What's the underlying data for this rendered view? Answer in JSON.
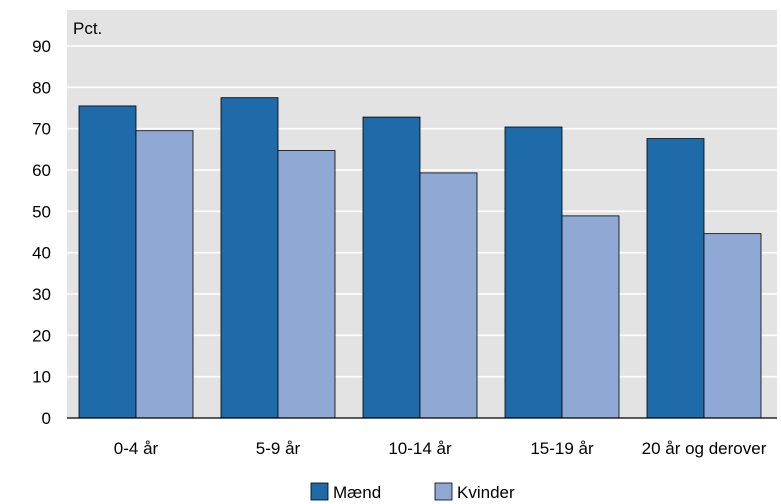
{
  "chart_data": {
    "type": "bar",
    "ylabel": "Pct.",
    "ylim": [
      0,
      90
    ],
    "yticks": [
      0,
      10,
      20,
      30,
      40,
      50,
      60,
      70,
      80,
      90
    ],
    "grid": true,
    "legend_position": "bottom",
    "categories": [
      "0-4 år",
      "5-9 år",
      "10-14 år",
      "15-19 år",
      "20 år og derover"
    ],
    "series": [
      {
        "name": "Mænd",
        "color": "#1f6aa8",
        "values": [
          75.5,
          77.5,
          72.8,
          70.4,
          67.6
        ]
      },
      {
        "name": "Kvinder",
        "color": "#8fa9d4",
        "values": [
          69.5,
          64.7,
          59.3,
          48.9,
          44.6
        ]
      }
    ]
  }
}
